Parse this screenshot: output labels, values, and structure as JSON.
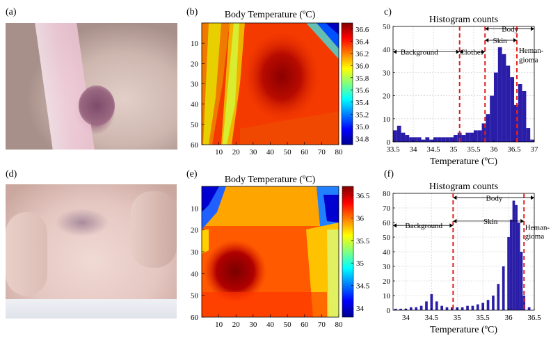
{
  "panel_labels": {
    "a": "(a)",
    "b": "(b)",
    "c": "c)",
    "d": "(d)",
    "e": "(e)",
    "f": "(f)"
  },
  "colors": {
    "histogram_bar": "#2a1ea8",
    "threshold_line": "#e0201c"
  },
  "heatmaps": [
    {
      "id": "b",
      "title": "Body Temperature (ºC)",
      "colorbar_ticks": [
        "36.6",
        "36.4",
        "36.2",
        "36.0",
        "35.8",
        "35.6",
        "35.4",
        "35.2",
        "35.0",
        "34.8"
      ],
      "colorbar_values": [
        36.6,
        36.4,
        36.2,
        36.0,
        35.8,
        35.6,
        35.4,
        35.2,
        35.0,
        34.8
      ],
      "colorbar_range": [
        34.7,
        36.7
      ],
      "x_ticks": [
        "10",
        "20",
        "30",
        "40",
        "50",
        "60",
        "70",
        "80"
      ],
      "y_ticks": [
        "10",
        "20",
        "30",
        "40",
        "50",
        "60"
      ],
      "x_range": [
        0,
        80
      ],
      "y_range": [
        0,
        60
      ]
    },
    {
      "id": "e",
      "title": "Body Temperature (ºC)",
      "colorbar_ticks": [
        "36.5",
        "36",
        "35.5",
        "35",
        "34.5",
        "34"
      ],
      "colorbar_values": [
        36.5,
        36.0,
        35.5,
        35.0,
        34.5,
        34.0
      ],
      "colorbar_range": [
        33.8,
        36.7
      ],
      "x_ticks": [
        "10",
        "20",
        "30",
        "40",
        "50",
        "60",
        "70",
        "80"
      ],
      "y_ticks": [
        "10",
        "20",
        "30",
        "40",
        "50",
        "60"
      ],
      "x_range": [
        0,
        80
      ],
      "y_range": [
        0,
        60
      ]
    }
  ],
  "chart_data": [
    {
      "id": "c",
      "type": "bar",
      "title": "Histogram counts",
      "xlabel": "Temperature (ºC)",
      "ylabel": "",
      "xlim": [
        33.5,
        37.0
      ],
      "ylim": [
        0,
        50
      ],
      "x_ticks": [
        "33.5",
        "34",
        "34.5",
        "35",
        "35.5",
        "36",
        "36.5",
        "37"
      ],
      "x_tick_values": [
        33.5,
        34.0,
        34.5,
        35.0,
        35.5,
        36.0,
        36.5,
        37.0
      ],
      "y_ticks": [
        "0",
        "10",
        "20",
        "30",
        "40",
        "50"
      ],
      "y_tick_values": [
        0,
        10,
        20,
        30,
        40,
        50
      ],
      "grid": true,
      "thresholds": [
        35.15,
        35.78,
        36.57
      ],
      "annotations": {
        "background": "Background",
        "clothes": "Clothes",
        "skin": "Skin",
        "body": "Body",
        "hemangioma_1": "Heman-",
        "hemangioma_2": "gioma"
      },
      "x": [
        33.55,
        33.65,
        33.75,
        33.85,
        33.95,
        34.05,
        34.15,
        34.25,
        34.35,
        34.45,
        34.55,
        34.65,
        34.75,
        34.85,
        34.95,
        35.05,
        35.15,
        35.25,
        35.35,
        35.45,
        35.55,
        35.65,
        35.75,
        35.85,
        35.95,
        36.05,
        36.15,
        36.25,
        36.35,
        36.45,
        36.55,
        36.65,
        36.75,
        36.85,
        36.95
      ],
      "values": [
        5,
        7,
        4,
        3,
        2,
        2,
        2,
        1,
        2,
        1,
        2,
        2,
        2,
        2,
        2,
        3,
        4,
        3,
        4,
        4,
        5,
        5,
        8,
        12,
        20,
        30,
        41,
        38,
        33,
        28,
        16,
        25,
        22,
        6,
        1
      ]
    },
    {
      "id": "f",
      "type": "bar",
      "title": "Histogram counts",
      "xlabel": "Temperature (ºC)",
      "ylabel": "",
      "xlim": [
        33.75,
        36.5
      ],
      "ylim": [
        0,
        80
      ],
      "x_ticks": [
        "34",
        "34.5",
        "35",
        "35.5",
        "36",
        "36.5"
      ],
      "x_tick_values": [
        34.0,
        34.5,
        35.0,
        35.5,
        36.0,
        36.5
      ],
      "y_ticks": [
        "0",
        "10",
        "20",
        "30",
        "40",
        "50",
        "60",
        "70",
        "80"
      ],
      "y_tick_values": [
        0,
        10,
        20,
        30,
        40,
        50,
        60,
        70,
        80
      ],
      "grid": true,
      "thresholds": [
        34.92,
        36.3
      ],
      "annotations": {
        "background": "Background",
        "skin": "Skin",
        "body": "Body",
        "hemangioma_1": "Heman-",
        "hemangioma_2": "gioma"
      },
      "x": [
        33.8,
        33.9,
        34.0,
        34.1,
        34.2,
        34.3,
        34.4,
        34.5,
        34.6,
        34.7,
        34.8,
        34.9,
        35.0,
        35.1,
        35.2,
        35.3,
        35.4,
        35.5,
        35.6,
        35.7,
        35.8,
        35.9,
        36.0,
        36.05,
        36.1,
        36.15,
        36.2,
        36.25,
        36.3,
        36.4
      ],
      "values": [
        1,
        1,
        1,
        2,
        2,
        3,
        6,
        11,
        6,
        3,
        2,
        2,
        2,
        2,
        3,
        3,
        4,
        5,
        7,
        10,
        18,
        30,
        50,
        62,
        75,
        72,
        60,
        40,
        10,
        2
      ]
    }
  ]
}
